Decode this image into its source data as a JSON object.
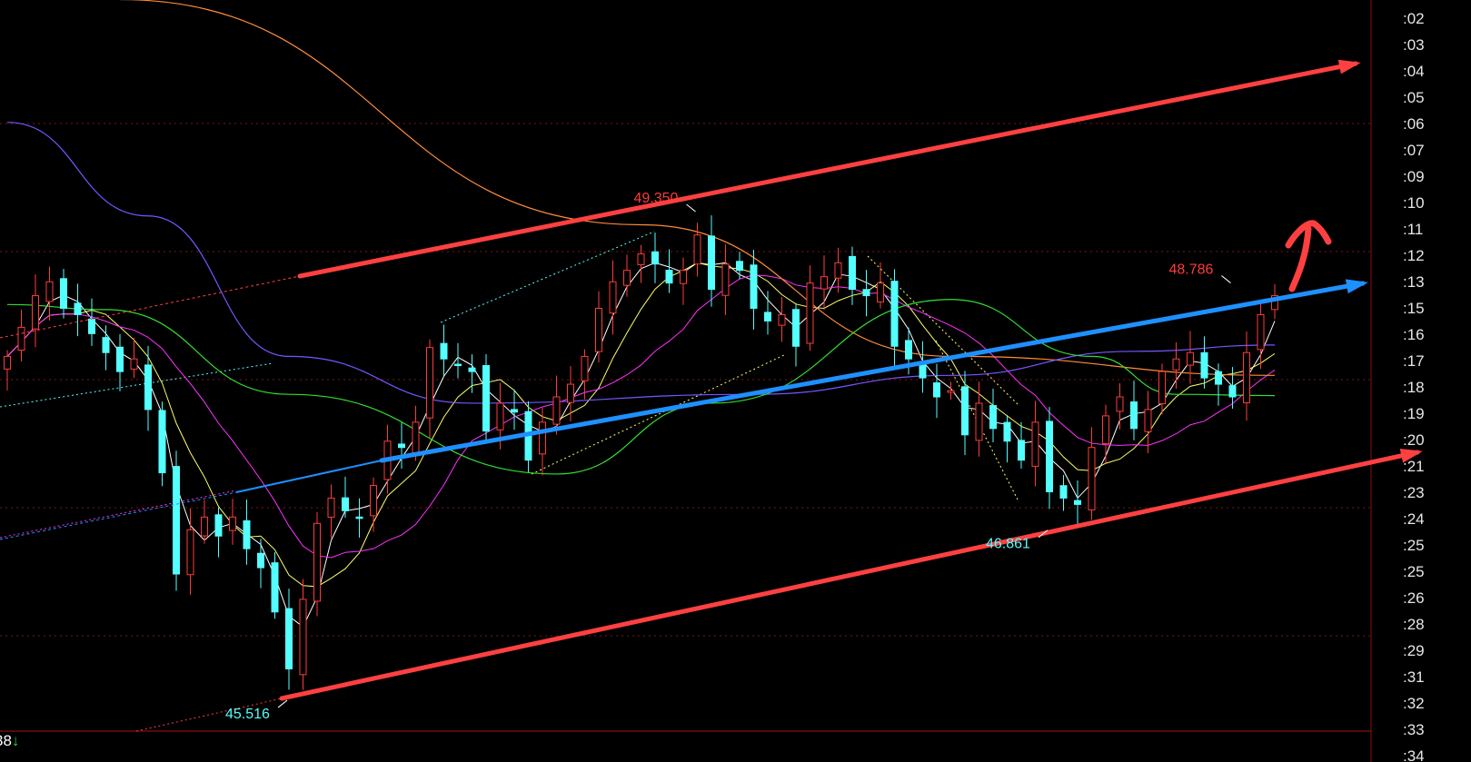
{
  "chart_data": {
    "type": "candlestick",
    "colors": {
      "up": "#ff3b3b",
      "down": "#54ffff",
      "background": "#000000",
      "grid": "#8a1010",
      "ma5": "#ffffff",
      "ma10": "#ffff66",
      "ma20": "#ff33ff",
      "ma60": "#33dd33",
      "ma_blue": "#7755ff",
      "ma_orange": "#ff8c3a",
      "channel": "#ff4040",
      "midline": "#1e90ff"
    },
    "price_range": [
      45.26,
      51.04
    ],
    "grid": true,
    "right_axis_labels": [
      ":02",
      ":03",
      ":04",
      ":05",
      ":06",
      ":07",
      ":09",
      ":10",
      ":11",
      ":12",
      ":13",
      ":15",
      ":16",
      ":17",
      ":18",
      ":19",
      ":20",
      ":21",
      ":23",
      ":24",
      ":25",
      ":25",
      ":26",
      ":28",
      ":29",
      ":31",
      ":32",
      ":33",
      ":34"
    ],
    "closes": [
      48.22,
      48.45,
      48.7,
      48.81,
      48.6,
      48.55,
      48.4,
      48.25,
      48.1,
      48.2,
      47.8,
      47.3,
      46.5,
      46.85,
      46.95,
      46.8,
      46.95,
      46.7,
      46.55,
      46.2,
      45.75,
      46.3,
      46.9,
      47.1,
      47.0,
      46.95,
      47.2,
      47.55,
      47.5,
      47.7,
      48.29,
      48.2,
      48.15,
      48.1,
      47.63,
      47.85,
      47.78,
      47.4,
      47.7,
      47.9,
      48.0,
      48.22,
      48.6,
      48.81,
      48.9,
      49.03,
      48.95,
      48.8,
      48.9,
      49.18,
      48.75,
      48.95,
      48.9,
      48.6,
      48.5,
      48.55,
      48.3,
      48.8,
      48.85,
      48.96,
      48.75,
      48.7,
      48.8,
      48.3,
      48.2,
      48.05,
      47.9,
      47.95,
      47.6,
      47.85,
      47.65,
      47.55,
      47.4,
      47.7,
      47.15,
      47.1,
      47.05,
      47.5,
      47.75,
      47.9,
      47.65,
      47.8,
      48.1,
      48.2,
      48.25,
      48.05,
      48.0,
      47.9,
      48.25,
      48.55,
      48.7
    ],
    "long_ma": {
      "orange": [
        [
          8,
          51.04
        ],
        [
          45,
          49.26
        ],
        [
          67,
          48.22
        ],
        [
          90,
          48.07
        ]
      ],
      "blue": [
        [
          0,
          50.07
        ],
        [
          10,
          49.33
        ],
        [
          20,
          48.22
        ],
        [
          33,
          47.85
        ],
        [
          53,
          47.92
        ],
        [
          67,
          48.07
        ],
        [
          80,
          48.26
        ],
        [
          90,
          48.31
        ]
      ],
      "green": [
        [
          0,
          48.63
        ],
        [
          7,
          48.59
        ],
        [
          20,
          47.92
        ],
        [
          39,
          47.29
        ],
        [
          50,
          47.85
        ],
        [
          67,
          48.67
        ],
        [
          77,
          48.22
        ],
        [
          83,
          47.92
        ],
        [
          90,
          47.91
        ]
      ]
    },
    "annotations": [
      {
        "text": "49.350",
        "price": 49.35,
        "index": 49,
        "color": "#ff3b3b"
      },
      {
        "text": "48.786",
        "price": 48.786,
        "index": 87,
        "color": "#ff3b3b"
      },
      {
        "text": "46.861",
        "price": 46.861,
        "index": 74,
        "color": "#54ffff"
      },
      {
        "text": "45.516",
        "price": 45.516,
        "index": 20,
        "color": "#54ffff"
      }
    ]
  },
  "footer": {
    "value": "38",
    "arrow": "↓"
  }
}
